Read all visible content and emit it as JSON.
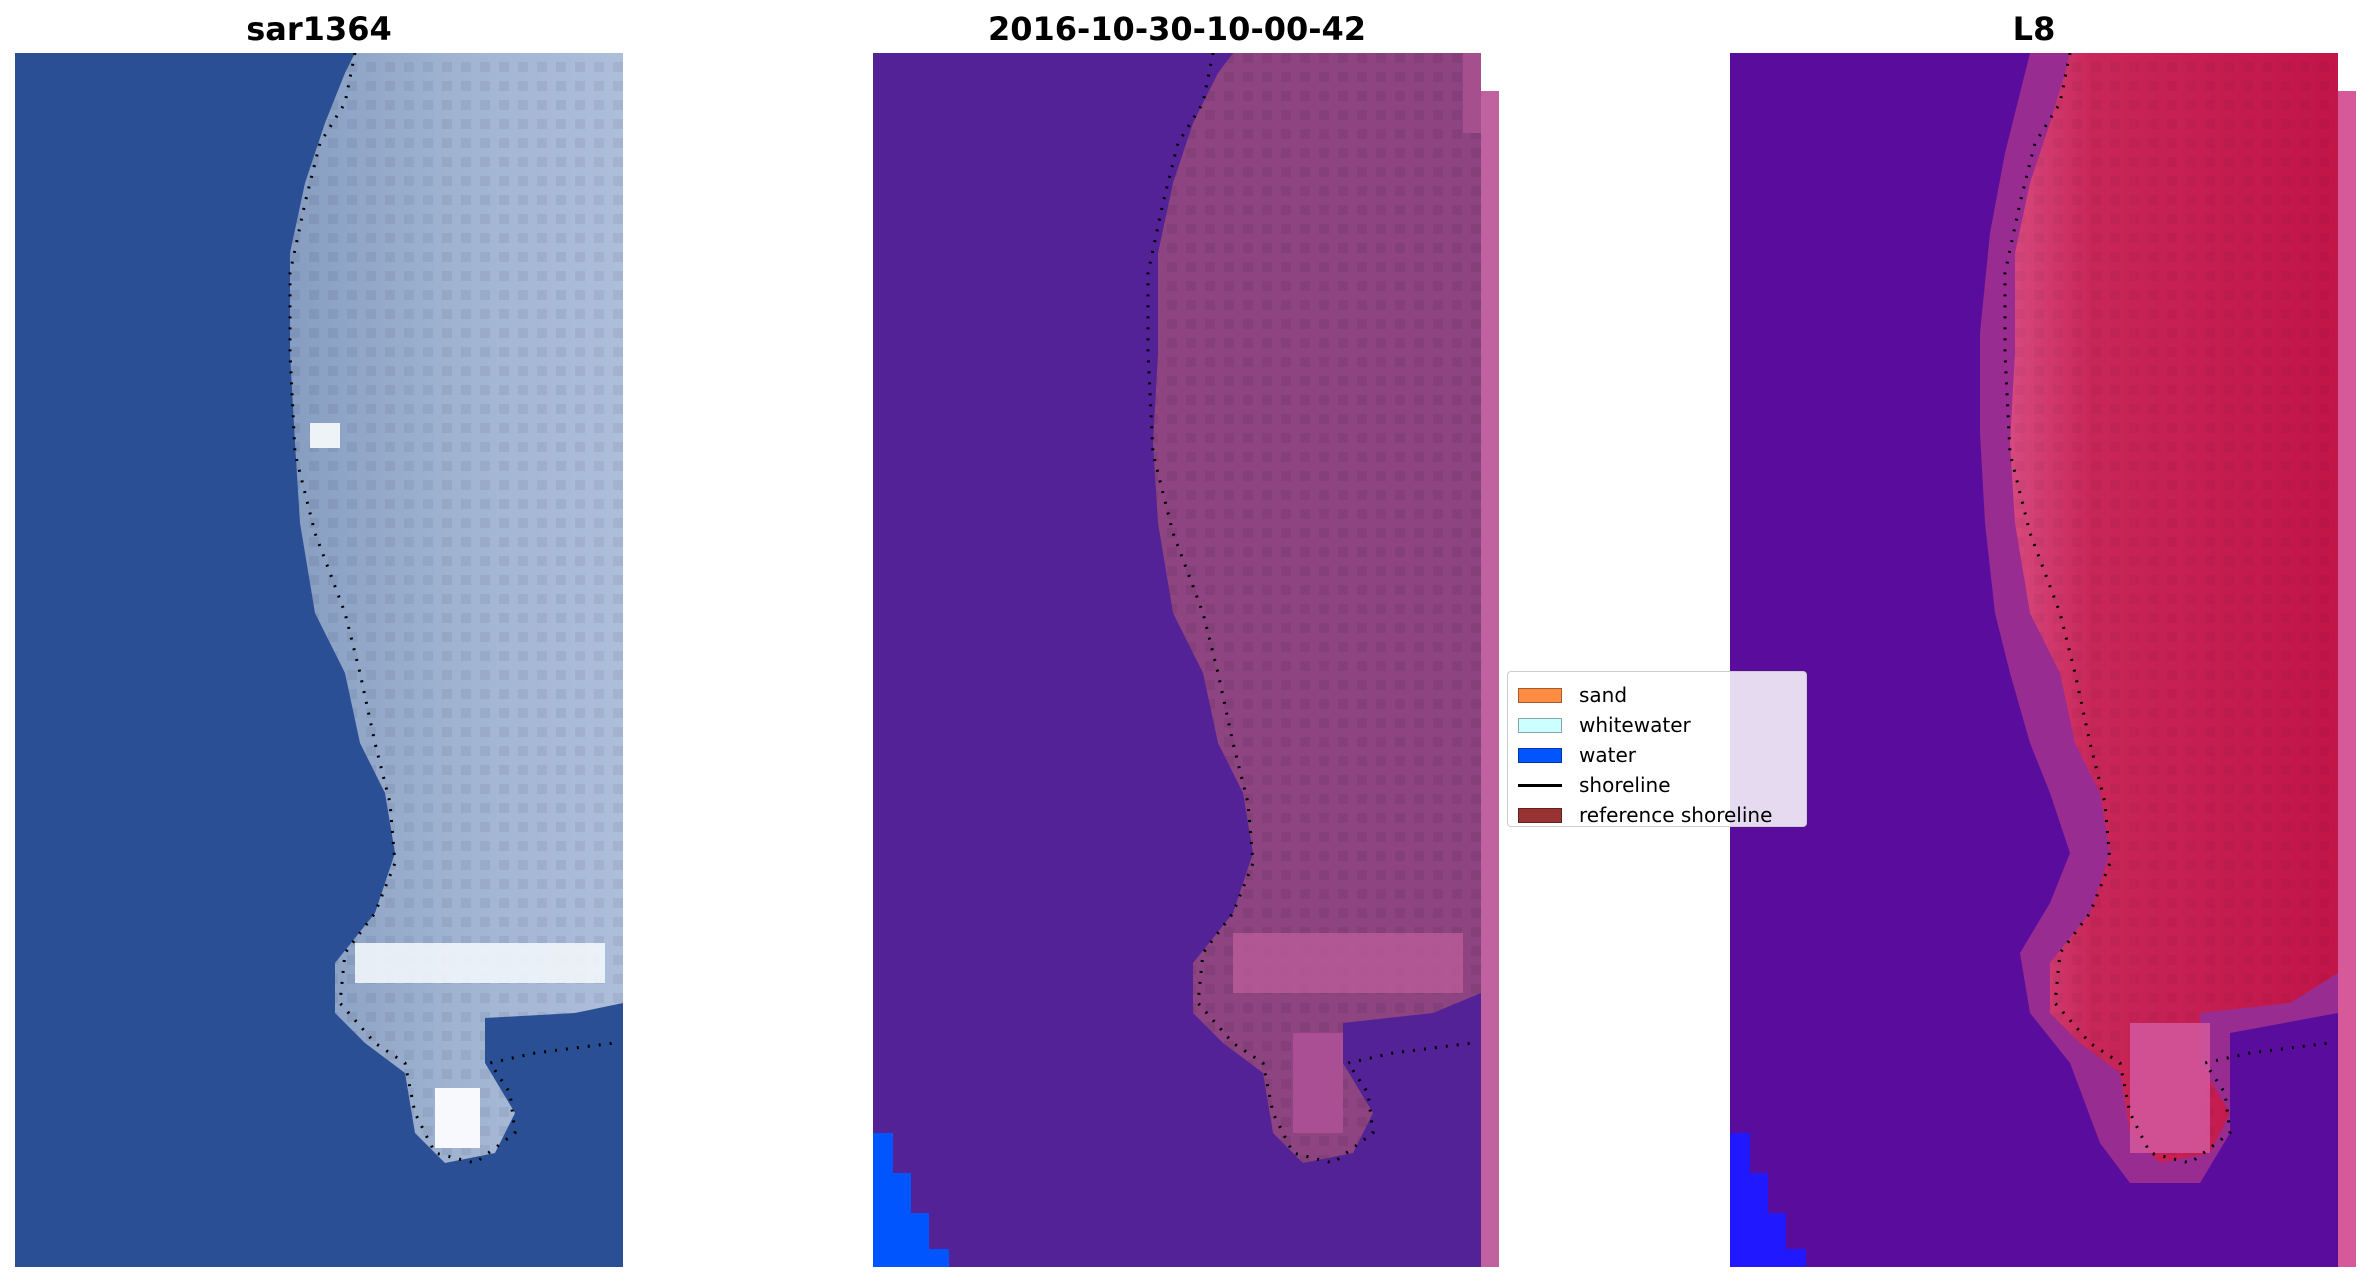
{
  "figure": {
    "panels": [
      {
        "title": "sar1364",
        "kind": "rgb"
      },
      {
        "title": "2016-10-30-10-00-42",
        "kind": "classified"
      },
      {
        "title": "L8",
        "kind": "mndwi"
      }
    ],
    "legend": {
      "placement": "center, between second and third panel",
      "items": [
        {
          "label": "sand",
          "color": "#ff8c42",
          "marker": "patch"
        },
        {
          "label": "whitewater",
          "color": "#ccffff",
          "marker": "patch"
        },
        {
          "label": "water",
          "color": "#0055ff",
          "marker": "patch"
        },
        {
          "label": "shoreline",
          "color": "#000000",
          "marker": "line"
        },
        {
          "label": "reference shoreline",
          "color": "#993333",
          "marker": "patch"
        }
      ]
    },
    "colors": {
      "rgb_water": "#2a4f94",
      "rgb_land": "#8ea4c4",
      "rgb_whitewater": "#f2f6fb",
      "classified_water": "#522296",
      "classified_land": "#883c7c",
      "classified_edge": "#c162a0",
      "classified_water_class": "#0055ff",
      "index_water": "#5a0d9c",
      "index_land": "#c11648",
      "index_edge": "#d65a9a",
      "index_water_class": "#2018ff"
    }
  }
}
